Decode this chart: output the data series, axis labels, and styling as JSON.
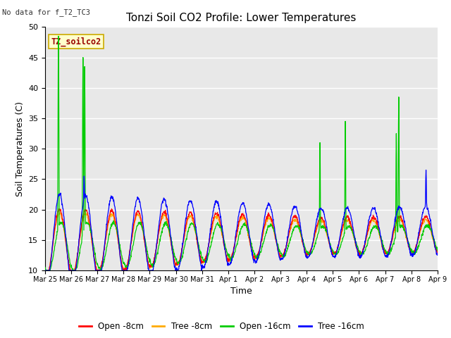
{
  "title": "Tonzi Soil CO2 Profile: Lower Temperatures",
  "subtitle": "No data for f_T2_TC3",
  "ylabel": "Soil Temperatures (C)",
  "xlabel": "Time",
  "ylim": [
    10,
    50
  ],
  "yticks": [
    10,
    15,
    20,
    25,
    30,
    35,
    40,
    45,
    50
  ],
  "background_color": "#e8e8e8",
  "legend_label": "TZ_soilco2",
  "legend_entries": [
    "Open -8cm",
    "Tree -8cm",
    "Open -16cm",
    "Tree -16cm"
  ],
  "legend_colors": [
    "#ff0000",
    "#ffaa00",
    "#00cc00",
    "#0000ff"
  ],
  "x_tick_labels": [
    "Mar 25",
    "Mar 26",
    "Mar 27",
    "Mar 28",
    "Mar 29",
    "Mar 30",
    "Mar 31",
    "Apr 1",
    "Apr 2",
    "Apr 3",
    "Apr 4",
    "Apr 5",
    "Apr 6",
    "Apr 7",
    "Apr 8",
    "Apr 9"
  ],
  "series_colors": [
    "#ff0000",
    "#ffaa00",
    "#00cc00",
    "#0000ff"
  ],
  "title_fontsize": 11,
  "axis_label_fontsize": 9,
  "tick_fontsize": 8
}
